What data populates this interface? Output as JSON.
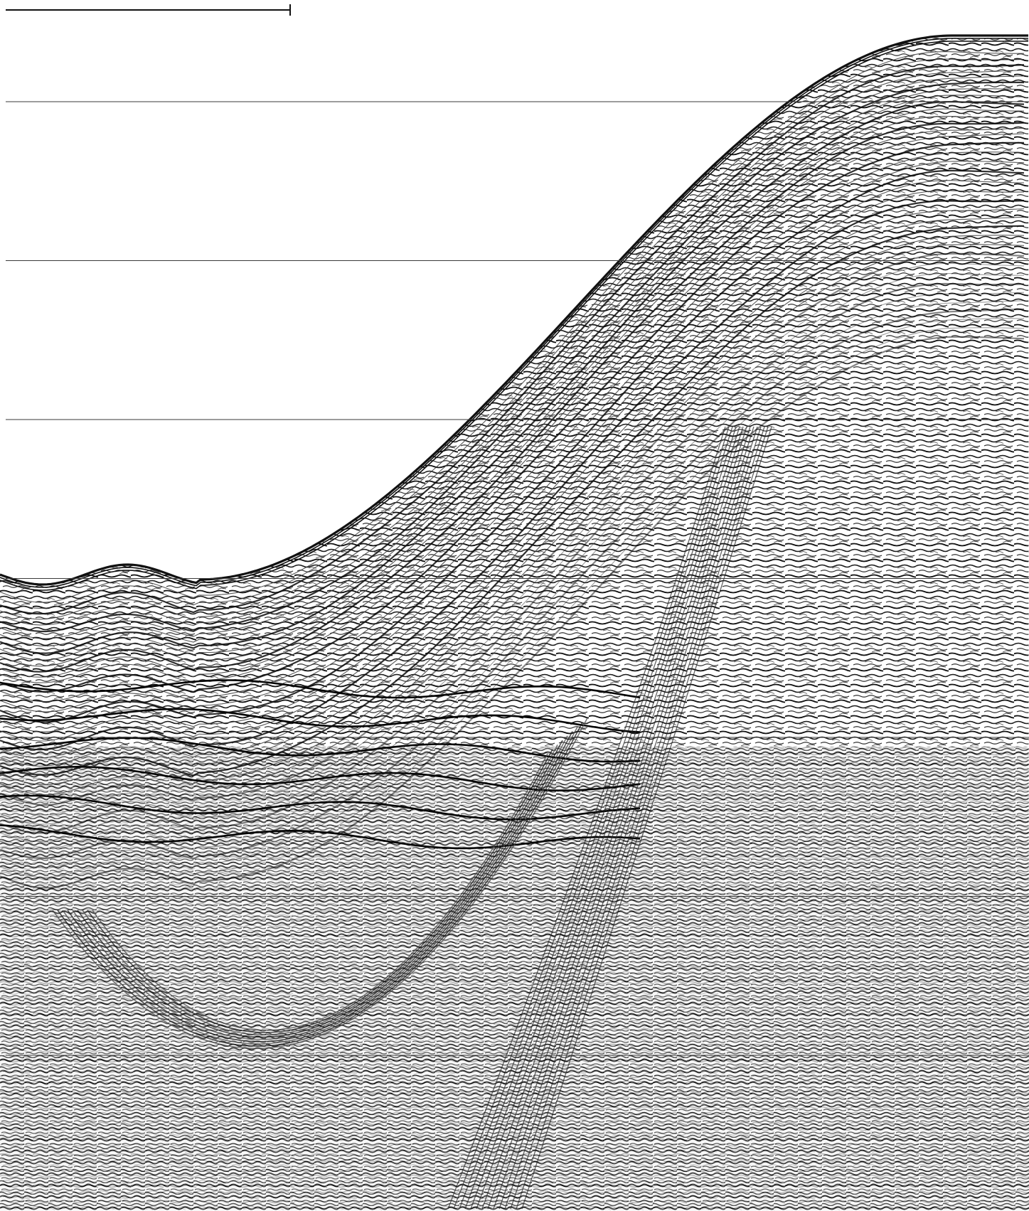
{
  "image": {
    "kind": "seismic reflection profile",
    "colors": {
      "background": "#ffffff",
      "ink": "#111111",
      "timing_line": "#3a3a3a"
    }
  },
  "scale_bar": {
    "style": "horizontal bar with right-end tick, no label"
  },
  "timing_lines": {
    "count": 8,
    "style": "thin horizontal lines"
  },
  "features": [
    "seafloor-reflector",
    "continental-slope",
    "basin-floor",
    "layered-sediment-reflectors",
    "diffraction-hyperbola",
    "chaotic-basement-noise"
  ]
}
